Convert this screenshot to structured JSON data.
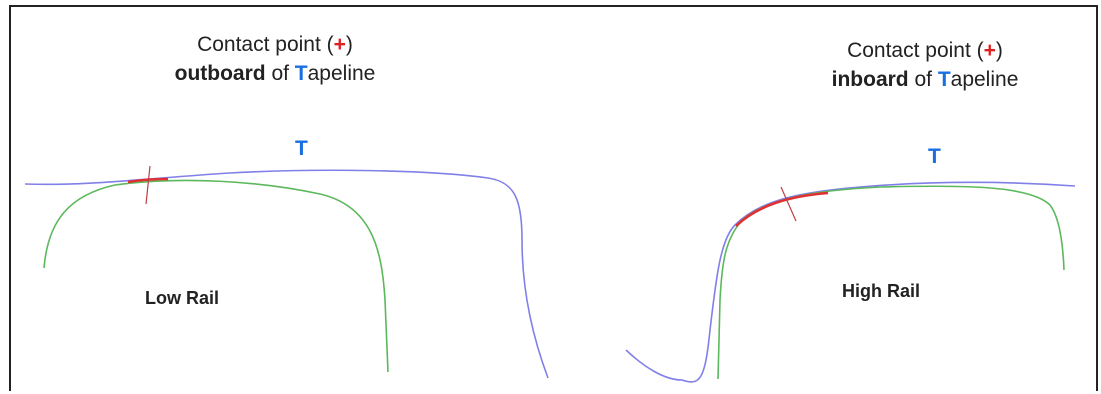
{
  "left_caption": {
    "line1_prefix": "Contact point (",
    "line1_symbol": "+",
    "line1_suffix": ")",
    "line2_bold": "outboard",
    "line2_mid": " of ",
    "line2_t": "T",
    "line2_rest": "apeline"
  },
  "right_caption": {
    "line1_prefix": "Contact point (",
    "line1_symbol": "+",
    "line1_suffix": ")",
    "line2_bold": "inboard",
    "line2_mid": " of ",
    "line2_t": "T",
    "line2_rest": "apeline"
  },
  "left_t_label": "T",
  "right_t_label": "T",
  "left_rail_label": "Low Rail",
  "right_rail_label": "High Rail",
  "colors": {
    "tapeline": "#8080e8",
    "rail_profile": "#5cb85c",
    "contact": "#e03030",
    "marker": "#c04040"
  }
}
